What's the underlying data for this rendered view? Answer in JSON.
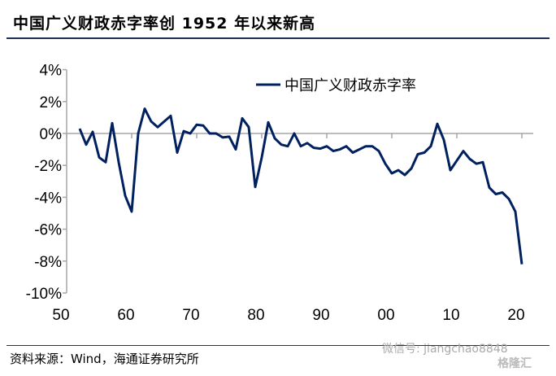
{
  "title": "中国广义财政赤字率创 1952 年以来新高",
  "footer": "资料来源：Wind，海通证券研究所",
  "watermark": "微信号: jiangchao8848",
  "watermark_logo": "格隆汇",
  "colors": {
    "line": "#002060",
    "axis": "#a6a6a6"
  },
  "chart_data": {
    "type": "line",
    "title": "中国广义财政赤字率创 1952 年以来新高",
    "xlabel": "",
    "ylabel": "",
    "ylim": [
      -10,
      4
    ],
    "xlim": [
      1950,
      2020
    ],
    "y_ticks": [
      "4%",
      "2%",
      "0%",
      "-2%",
      "-4%",
      "-6%",
      "-8%",
      "-10%"
    ],
    "y_tick_values": [
      4,
      2,
      0,
      -2,
      -4,
      -6,
      -8,
      -10
    ],
    "x_ticks": [
      "50",
      "60",
      "70",
      "80",
      "90",
      "00",
      "10",
      "20"
    ],
    "x_tick_values": [
      1950,
      1960,
      1970,
      1980,
      1990,
      2000,
      2010,
      2020
    ],
    "legend": "top-center",
    "grid": false,
    "series": [
      {
        "name": "中国广义财政赤字率",
        "x_start": 1952,
        "values": [
          0.3,
          -0.7,
          0.1,
          -1.5,
          -1.8,
          0.65,
          -1.8,
          -3.9,
          -4.9,
          0.0,
          1.55,
          0.75,
          0.4,
          0.75,
          1.1,
          -1.2,
          0.15,
          0.0,
          0.55,
          0.5,
          0.0,
          0.0,
          -0.25,
          -0.2,
          -1.0,
          0.95,
          0.4,
          -3.35,
          -1.5,
          0.7,
          -0.3,
          -0.7,
          -0.8,
          0.0,
          -0.8,
          -0.6,
          -0.9,
          -0.95,
          -0.8,
          -1.1,
          -1.0,
          -0.8,
          -1.2,
          -1.0,
          -0.8,
          -0.8,
          -1.1,
          -1.9,
          -2.5,
          -2.3,
          -2.6,
          -2.2,
          -1.3,
          -1.2,
          -0.8,
          0.6,
          -0.4,
          -2.3,
          -1.7,
          -1.1,
          -1.6,
          -1.9,
          -1.8,
          -3.4,
          -3.8,
          -3.7,
          -4.1,
          -4.9,
          -8.2
        ]
      }
    ]
  }
}
